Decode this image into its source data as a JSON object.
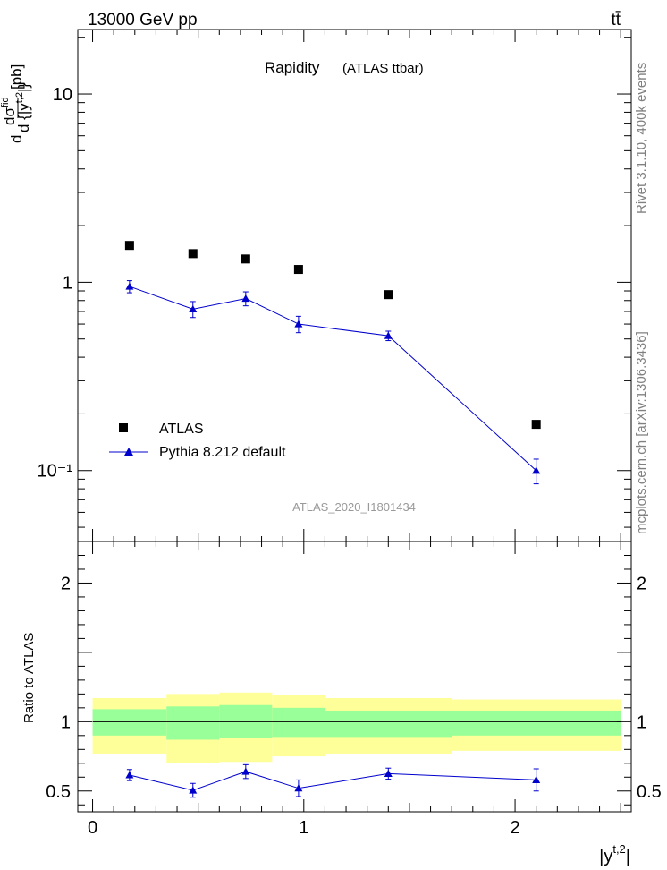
{
  "header": {
    "energy_label": "13000 GeV pp",
    "process_label": "tt̄"
  },
  "side_texts": {
    "rivet": "Rivet 3.1.10,  400k events",
    "mcplots": "mcplots.cern.ch [arXiv:1306.3436]"
  },
  "chart_data": [
    {
      "type": "scatter",
      "panel": "main",
      "title": "Rapidity",
      "subtitle": "(ATLAS ttbar)",
      "watermark": "ATLAS_2020_I1801434",
      "ylabel": "dσfid / d{|y t,2|} [pb]",
      "yscale": "log",
      "ylim": [
        0.042,
        22
      ],
      "xlim": [
        -0.07,
        2.55
      ],
      "x_bins": [
        [
          0.0,
          0.35
        ],
        [
          0.35,
          0.6
        ],
        [
          0.6,
          0.85
        ],
        [
          0.85,
          1.1
        ],
        [
          1.1,
          1.7
        ],
        [
          1.7,
          2.5
        ]
      ],
      "y_tick_labels": [
        "10⁻¹",
        "1",
        "10"
      ],
      "legend_position": "lower-left",
      "series": [
        {
          "name": "ATLAS",
          "marker": "square",
          "color": "#000000",
          "x": [
            0.175,
            0.475,
            0.725,
            0.975,
            1.4,
            2.1
          ],
          "y": [
            1.57,
            1.42,
            1.33,
            1.17,
            0.86,
            0.176
          ]
        },
        {
          "name": "Pythia 8.212 default",
          "marker": "triangle",
          "color": "#0000cc",
          "x": [
            0.175,
            0.475,
            0.725,
            0.975,
            1.4,
            2.1
          ],
          "y": [
            0.95,
            0.72,
            0.82,
            0.6,
            0.52,
            0.1
          ],
          "err": [
            0.07,
            0.07,
            0.07,
            0.06,
            0.03,
            0.015
          ]
        }
      ]
    },
    {
      "type": "scatter",
      "panel": "ratio",
      "ylabel": "Ratio to ATLAS",
      "xlabel": "|y t,2|",
      "ylim": [
        0.35,
        2.3
      ],
      "xlim": [
        -0.07,
        2.55
      ],
      "x_tick_labels": [
        "0",
        "1",
        "2"
      ],
      "y_tick_labels": [
        "0.5",
        "1",
        "2"
      ],
      "bands": {
        "x_edges": [
          0.0,
          0.35,
          0.6,
          0.85,
          1.1,
          1.7,
          2.5
        ],
        "inner": [
          [
            0.9,
            1.09
          ],
          [
            0.87,
            1.11
          ],
          [
            0.88,
            1.12
          ],
          [
            0.89,
            1.1
          ],
          [
            0.89,
            1.08
          ],
          [
            0.9,
            1.08
          ]
        ],
        "outer": [
          [
            0.77,
            1.17
          ],
          [
            0.7,
            1.2
          ],
          [
            0.71,
            1.21
          ],
          [
            0.75,
            1.19
          ],
          [
            0.77,
            1.17
          ],
          [
            0.79,
            1.16
          ]
        ],
        "inner_color": "#99ff99",
        "outer_color": "#ffff99"
      },
      "series": [
        {
          "name": "Pythia 8.212 default",
          "marker": "triangle",
          "color": "#0000cc",
          "x": [
            0.175,
            0.475,
            0.725,
            0.975,
            1.4,
            2.1
          ],
          "y": [
            0.615,
            0.505,
            0.64,
            0.52,
            0.625,
            0.58
          ],
          "err": [
            0.04,
            0.05,
            0.05,
            0.06,
            0.04,
            0.08
          ]
        }
      ]
    }
  ]
}
